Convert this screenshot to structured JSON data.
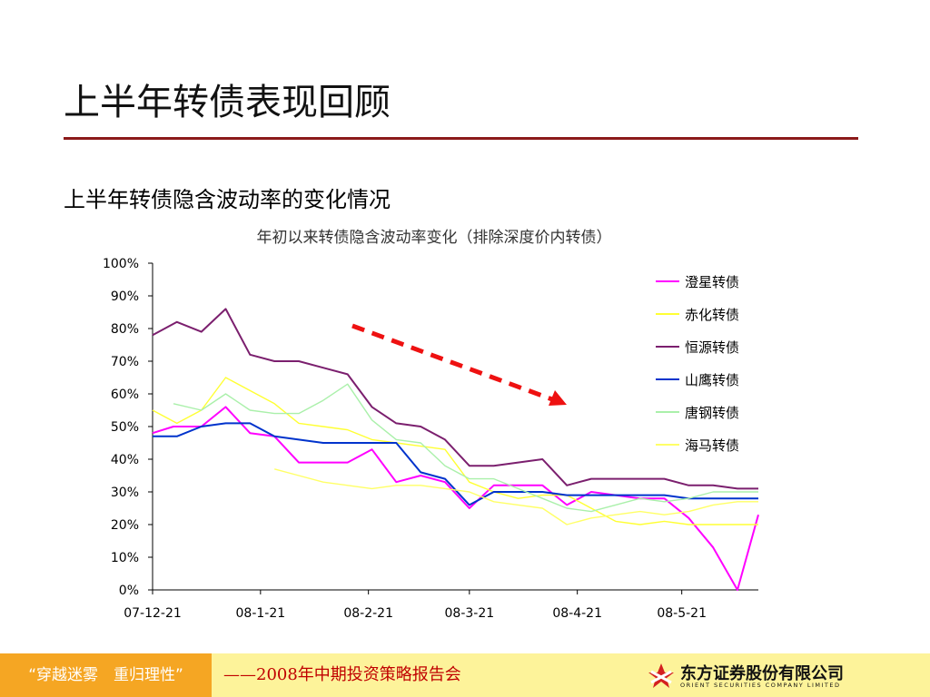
{
  "slide": {
    "title": "上半年转债表现回顾",
    "subtitle": "上半年转债隐含波动率的变化情况"
  },
  "footer": {
    "slogan": "“穿越迷雾　重归理性”",
    "tagline": "——2008年中期投资策略报告会",
    "logo_name": "东方证券股份有限公司",
    "logo_en": "ORIENT SECURITIES COMPANY LIMITED",
    "logo_icon": "orient-securities-logo-icon"
  },
  "colors": {
    "title_rule": "#8b1a1a",
    "footer_left": "#f5a623",
    "footer_mid": "#fdf39a",
    "arrow": "#ee1111"
  },
  "chart_data": {
    "type": "line",
    "title": "年初以来转债隐含波动率变化（排除深度价内转债）",
    "xlabel": "",
    "ylabel": "",
    "x_ticks": [
      "07-12-21",
      "08-1-21",
      "08-2-21",
      "08-3-21",
      "08-4-21",
      "08-5-21"
    ],
    "y_ticks": [
      "0%",
      "10%",
      "20%",
      "30%",
      "40%",
      "50%",
      "60%",
      "70%",
      "80%",
      "90%",
      "100%"
    ],
    "ylim": [
      0,
      100
    ],
    "x_range": [
      "2007-12-21",
      "2008-06-12"
    ],
    "grid": false,
    "legend_position": "right",
    "annotation": "red dashed downward-trend arrow",
    "series": [
      {
        "name": "澄星转债",
        "color": "#ff00ff",
        "x": [
          "2007-12-21",
          "2007-12-27",
          "2008-01-04",
          "2008-01-11",
          "2008-01-18",
          "2008-01-25",
          "2008-02-01",
          "2008-02-08",
          "2008-02-15",
          "2008-02-22",
          "2008-02-29",
          "2008-03-07",
          "2008-03-14",
          "2008-03-21",
          "2008-03-28",
          "2008-04-04",
          "2008-04-11",
          "2008-04-18",
          "2008-04-25",
          "2008-05-02",
          "2008-05-09",
          "2008-05-16",
          "2008-05-23",
          "2008-05-30",
          "2008-06-06",
          "2008-06-12"
        ],
        "values": [
          48,
          50,
          50,
          56,
          48,
          47,
          39,
          39,
          39,
          43,
          33,
          35,
          33,
          25,
          32,
          32,
          32,
          26,
          30,
          29,
          28,
          28,
          22,
          13,
          0,
          23
        ]
      },
      {
        "name": "赤化转债",
        "color": "#ffff33",
        "x": [
          "2007-12-21",
          "2007-12-28",
          "2008-01-04",
          "2008-01-11",
          "2008-01-18",
          "2008-01-25",
          "2008-02-01",
          "2008-02-08",
          "2008-02-15",
          "2008-02-22",
          "2008-02-29",
          "2008-03-07",
          "2008-03-14",
          "2008-03-21",
          "2008-03-28",
          "2008-04-04",
          "2008-04-11",
          "2008-04-18",
          "2008-04-25",
          "2008-05-02",
          "2008-05-09",
          "2008-05-16",
          "2008-05-23",
          "2008-05-30",
          "2008-06-06",
          "2008-06-12"
        ],
        "values": [
          55,
          51,
          55,
          65,
          61,
          57,
          51,
          50,
          49,
          46,
          45,
          44,
          43,
          33,
          30,
          28,
          29,
          29,
          25,
          21,
          20,
          21,
          20,
          20,
          20,
          20
        ]
      },
      {
        "name": "恒源转债",
        "color": "#7b1f6e",
        "x": [
          "2007-12-21",
          "2007-12-28",
          "2008-01-04",
          "2008-01-11",
          "2008-01-18",
          "2008-01-25",
          "2008-02-01",
          "2008-02-08",
          "2008-02-15",
          "2008-02-22",
          "2008-02-29",
          "2008-03-07",
          "2008-03-14",
          "2008-03-21",
          "2008-03-28",
          "2008-04-04",
          "2008-04-11",
          "2008-04-18",
          "2008-04-25",
          "2008-05-02",
          "2008-05-09",
          "2008-05-16",
          "2008-05-23",
          "2008-05-30",
          "2008-06-06",
          "2008-06-12"
        ],
        "values": [
          78,
          82,
          79,
          86,
          72,
          70,
          70,
          68,
          66,
          56,
          51,
          50,
          46,
          38,
          38,
          39,
          40,
          32,
          34,
          34,
          34,
          34,
          32,
          32,
          31,
          31
        ]
      },
      {
        "name": "山鹰转债",
        "color": "#0033cc",
        "x": [
          "2007-12-21",
          "2007-12-28",
          "2008-01-04",
          "2008-01-11",
          "2008-01-18",
          "2008-01-25",
          "2008-02-01",
          "2008-02-08",
          "2008-02-15",
          "2008-02-22",
          "2008-02-29",
          "2008-03-07",
          "2008-03-14",
          "2008-03-21",
          "2008-03-28",
          "2008-04-04",
          "2008-04-11",
          "2008-04-18",
          "2008-04-25",
          "2008-05-02",
          "2008-05-09",
          "2008-05-16",
          "2008-05-23",
          "2008-05-30",
          "2008-06-06",
          "2008-06-12"
        ],
        "values": [
          47,
          47,
          50,
          51,
          51,
          47,
          46,
          45,
          45,
          45,
          45,
          36,
          34,
          26,
          30,
          30,
          30,
          29,
          29,
          29,
          29,
          29,
          28,
          28,
          28,
          28
        ]
      },
      {
        "name": "唐钢转债",
        "color": "#aaf0aa",
        "x": [
          "2007-12-27",
          "2008-01-04",
          "2008-01-11",
          "2008-01-18",
          "2008-01-25",
          "2008-02-01",
          "2008-02-08",
          "2008-02-15",
          "2008-02-22",
          "2008-02-29",
          "2008-03-07",
          "2008-03-14",
          "2008-03-21",
          "2008-03-28",
          "2008-04-04",
          "2008-04-11",
          "2008-04-18",
          "2008-04-25",
          "2008-05-02",
          "2008-05-09",
          "2008-05-16",
          "2008-05-23",
          "2008-05-30",
          "2008-06-06",
          "2008-06-12"
        ],
        "values": [
          57,
          55,
          60,
          55,
          54,
          54,
          58,
          63,
          52,
          46,
          45,
          38,
          34,
          34,
          31,
          28,
          25,
          24,
          26,
          28,
          27,
          28,
          30,
          30,
          30
        ]
      },
      {
        "name": "海马转债",
        "color": "#ffff66",
        "x": [
          "2008-01-25",
          "2008-02-01",
          "2008-02-08",
          "2008-02-15",
          "2008-02-22",
          "2008-02-29",
          "2008-03-07",
          "2008-03-14",
          "2008-03-21",
          "2008-03-28",
          "2008-04-04",
          "2008-04-11",
          "2008-04-18",
          "2008-04-25",
          "2008-05-02",
          "2008-05-09",
          "2008-05-16",
          "2008-05-23",
          "2008-05-30",
          "2008-06-06",
          "2008-06-12"
        ],
        "values": [
          37,
          35,
          33,
          32,
          31,
          32,
          32,
          31,
          30,
          27,
          26,
          25,
          20,
          22,
          23,
          24,
          23,
          24,
          26,
          27,
          27
        ]
      }
    ]
  }
}
